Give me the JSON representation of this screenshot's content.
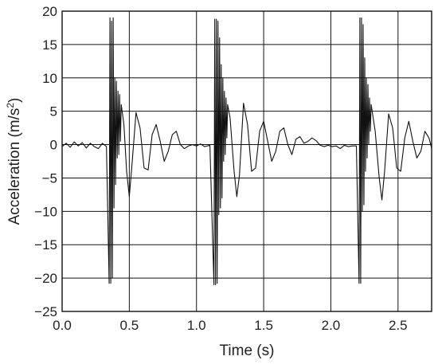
{
  "chart_data": {
    "type": "line",
    "xlabel": "Time (s)",
    "ylabel": "Acceleration (m/s²)",
    "ylabel_parts": {
      "main": "Acceleration (m/s",
      "sup": "2",
      "close": ")"
    },
    "xlim": [
      0,
      2.75
    ],
    "ylim": [
      -25,
      20
    ],
    "xticks": [
      0.0,
      0.5,
      1.0,
      1.5,
      2.0,
      2.5
    ],
    "xtick_labels": [
      "0.0",
      "0.5",
      "1.0",
      "1.5",
      "2.0",
      "2.5"
    ],
    "yticks": [
      20,
      15,
      10,
      5,
      0,
      -5,
      -10,
      -15,
      -20,
      -25
    ],
    "ytick_labels": [
      "20",
      "15",
      "10",
      "5",
      "0",
      "−5",
      "−10",
      "−15",
      "−20",
      "−25"
    ],
    "grid": true,
    "line_color": "#111111",
    "series": [
      {
        "values_description_free": true,
        "points": [
          [
            0.0,
            -0.3
          ],
          [
            0.03,
            0.2
          ],
          [
            0.06,
            -0.4
          ],
          [
            0.09,
            0.4
          ],
          [
            0.12,
            -0.2
          ],
          [
            0.15,
            0.3
          ],
          [
            0.18,
            -0.5
          ],
          [
            0.21,
            0.2
          ],
          [
            0.24,
            -0.3
          ],
          [
            0.27,
            -0.6
          ],
          [
            0.3,
            0.2
          ],
          [
            0.33,
            -0.3
          ],
          [
            0.35,
            -20.8
          ],
          [
            0.356,
            19.0
          ],
          [
            0.362,
            -20.8
          ],
          [
            0.368,
            18.5
          ],
          [
            0.374,
            -20.0
          ],
          [
            0.38,
            19.0
          ],
          [
            0.386,
            -9.5
          ],
          [
            0.392,
            10.0
          ],
          [
            0.398,
            -6.0
          ],
          [
            0.404,
            9.5
          ],
          [
            0.41,
            -2.0
          ],
          [
            0.416,
            8.0
          ],
          [
            0.422,
            -1.5
          ],
          [
            0.428,
            7.5
          ],
          [
            0.434,
            0.5
          ],
          [
            0.44,
            6.0
          ],
          [
            0.46,
            3.0
          ],
          [
            0.48,
            -4.0
          ],
          [
            0.5,
            -7.8
          ],
          [
            0.52,
            -3.0
          ],
          [
            0.55,
            4.8
          ],
          [
            0.58,
            2.5
          ],
          [
            0.61,
            -3.5
          ],
          [
            0.64,
            -3.8
          ],
          [
            0.67,
            1.5
          ],
          [
            0.7,
            3.0
          ],
          [
            0.73,
            0.5
          ],
          [
            0.76,
            -2.5
          ],
          [
            0.79,
            -1.0
          ],
          [
            0.82,
            1.5
          ],
          [
            0.85,
            2.0
          ],
          [
            0.88,
            0.0
          ],
          [
            0.91,
            -0.6
          ],
          [
            0.94,
            -0.2
          ],
          [
            0.97,
            0.0
          ],
          [
            1.0,
            -0.2
          ],
          [
            1.03,
            0.1
          ],
          [
            1.06,
            -0.3
          ],
          [
            1.1,
            -0.1
          ],
          [
            1.13,
            -21.0
          ],
          [
            1.136,
            18.8
          ],
          [
            1.142,
            -21.0
          ],
          [
            1.148,
            18.8
          ],
          [
            1.154,
            -20.8
          ],
          [
            1.16,
            18.5
          ],
          [
            1.166,
            -10.5
          ],
          [
            1.172,
            16.0
          ],
          [
            1.178,
            -9.5
          ],
          [
            1.184,
            12.0
          ],
          [
            1.19,
            -8.0
          ],
          [
            1.196,
            10.0
          ],
          [
            1.202,
            -2.5
          ],
          [
            1.208,
            8.0
          ],
          [
            1.214,
            -1.5
          ],
          [
            1.22,
            7.0
          ],
          [
            1.226,
            1.0
          ],
          [
            1.232,
            6.0
          ],
          [
            1.25,
            4.0
          ],
          [
            1.28,
            -4.0
          ],
          [
            1.3,
            -7.8
          ],
          [
            1.32,
            -4.5
          ],
          [
            1.35,
            6.2
          ],
          [
            1.38,
            3.0
          ],
          [
            1.41,
            -4.0
          ],
          [
            1.44,
            -3.5
          ],
          [
            1.47,
            2.0
          ],
          [
            1.5,
            3.5
          ],
          [
            1.53,
            0.5
          ],
          [
            1.56,
            -2.5
          ],
          [
            1.59,
            -1.0
          ],
          [
            1.62,
            2.0
          ],
          [
            1.65,
            2.5
          ],
          [
            1.68,
            0.0
          ],
          [
            1.71,
            -1.5
          ],
          [
            1.74,
            0.8
          ],
          [
            1.77,
            1.2
          ],
          [
            1.8,
            0.2
          ],
          [
            1.83,
            0.5
          ],
          [
            1.86,
            1.0
          ],
          [
            1.89,
            0.6
          ],
          [
            1.92,
            -0.1
          ],
          [
            1.95,
            -0.3
          ],
          [
            1.98,
            -0.1
          ],
          [
            2.01,
            -0.3
          ],
          [
            2.04,
            -0.2
          ],
          [
            2.07,
            -0.6
          ],
          [
            2.1,
            -0.1
          ],
          [
            2.13,
            -0.3
          ],
          [
            2.16,
            -0.2
          ],
          [
            2.19,
            -0.2
          ],
          [
            2.21,
            -20.8
          ],
          [
            2.216,
            19.0
          ],
          [
            2.222,
            -20.8
          ],
          [
            2.228,
            19.0
          ],
          [
            2.234,
            -10.0
          ],
          [
            2.24,
            18.0
          ],
          [
            2.246,
            -9.0
          ],
          [
            2.252,
            13.0
          ],
          [
            2.258,
            -4.0
          ],
          [
            2.264,
            10.0
          ],
          [
            2.27,
            -2.0
          ],
          [
            2.276,
            9.0
          ],
          [
            2.282,
            0.0
          ],
          [
            2.288,
            7.0
          ],
          [
            2.294,
            2.0
          ],
          [
            2.3,
            6.0
          ],
          [
            2.33,
            2.0
          ],
          [
            2.36,
            -5.0
          ],
          [
            2.38,
            -8.3
          ],
          [
            2.4,
            -4.0
          ],
          [
            2.43,
            4.6
          ],
          [
            2.46,
            2.5
          ],
          [
            2.49,
            -3.5
          ],
          [
            2.52,
            -4.0
          ],
          [
            2.55,
            1.0
          ],
          [
            2.58,
            3.5
          ],
          [
            2.61,
            0.5
          ],
          [
            2.64,
            -2.0
          ],
          [
            2.67,
            -1.0
          ],
          [
            2.7,
            2.0
          ],
          [
            2.73,
            1.0
          ],
          [
            2.75,
            -0.5
          ]
        ]
      }
    ]
  }
}
